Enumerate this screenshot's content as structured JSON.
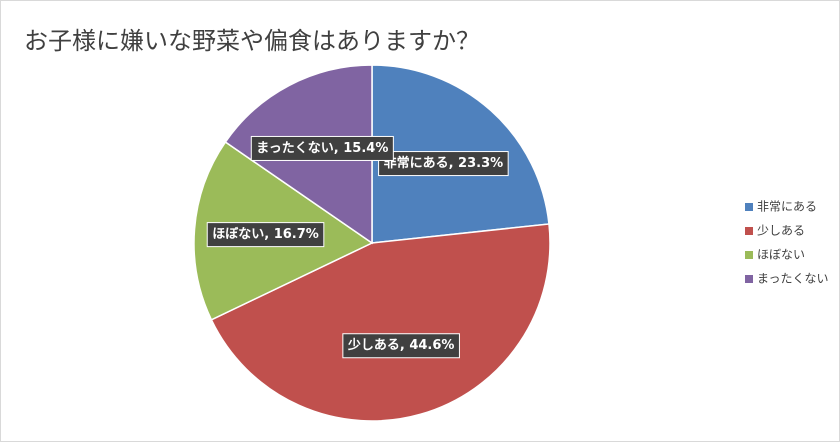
{
  "chart_data": {
    "type": "pie",
    "title": "お子様に嫌いな野菜や偏食はありますか？",
    "categories": [
      "非常にある",
      "少しある",
      "ほぼない",
      "まったくない"
    ],
    "values": [
      23.3,
      44.6,
      16.7,
      15.4
    ],
    "value_labels": [
      "非常にある, 23.3%",
      "少しある, 44.6%",
      "ほぼない, 16.7%",
      "まったくない, 15.4%"
    ],
    "colors": [
      "#4f81bd",
      "#c0504d",
      "#9bbb59",
      "#8064a2"
    ],
    "legend": "right"
  }
}
